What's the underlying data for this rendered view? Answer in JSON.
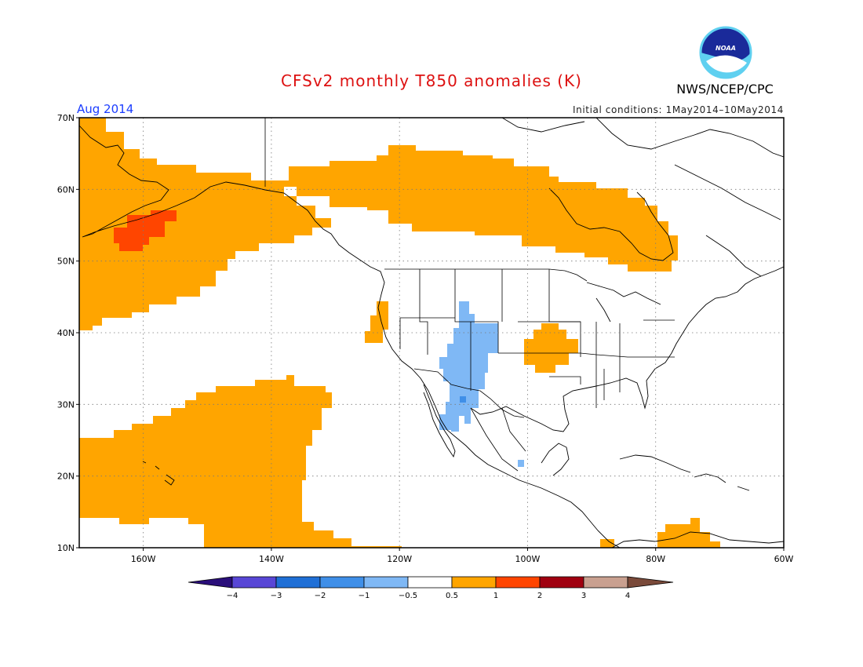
{
  "title": "CFSv2 monthly T850 anomalies (K)",
  "agency": "NWS/NCEP/CPC",
  "logo_text": "NOAA",
  "month_label": "Aug 2014",
  "initial_conditions": "Initial conditions: 1May2014–10May2014",
  "colors": {
    "title": "#dd1111",
    "month": "#1a3cff",
    "positive_anomaly": "#ffa500",
    "strong_positive_anomaly": "#ff4500",
    "negative_anomaly": "#7fb8f5",
    "darker_negative_anomaly": "#3f8fe8"
  },
  "map": {
    "lat_range": [
      10,
      70
    ],
    "lon_range": [
      -170,
      -60
    ],
    "lat_ticks": [
      {
        "value": 70,
        "label": "70N"
      },
      {
        "value": 60,
        "label": "60N"
      },
      {
        "value": 50,
        "label": "50N"
      },
      {
        "value": 40,
        "label": "40N"
      },
      {
        "value": 30,
        "label": "30N"
      },
      {
        "value": 20,
        "label": "20N"
      },
      {
        "value": 10,
        "label": "10N"
      }
    ],
    "lon_ticks": [
      {
        "value": -160,
        "label": "160W"
      },
      {
        "value": -140,
        "label": "140W"
      },
      {
        "value": -120,
        "label": "120W"
      },
      {
        "value": -100,
        "label": "100W"
      },
      {
        "value": -80,
        "label": "80W"
      },
      {
        "value": -60,
        "label": "60W"
      }
    ]
  },
  "colorbar": {
    "colors": [
      "#2a0e7a",
      "#5846d6",
      "#1f6fd6",
      "#3f8fe8",
      "#7fb8f5",
      "#ffffff",
      "#ffa500",
      "#ff4500",
      "#a00010",
      "#c9a090",
      "#7a4a3a"
    ],
    "labels": [
      "−4",
      "−3",
      "−2",
      "−1",
      "−0.5",
      "0.5",
      "1",
      "2",
      "3",
      "4"
    ]
  }
}
